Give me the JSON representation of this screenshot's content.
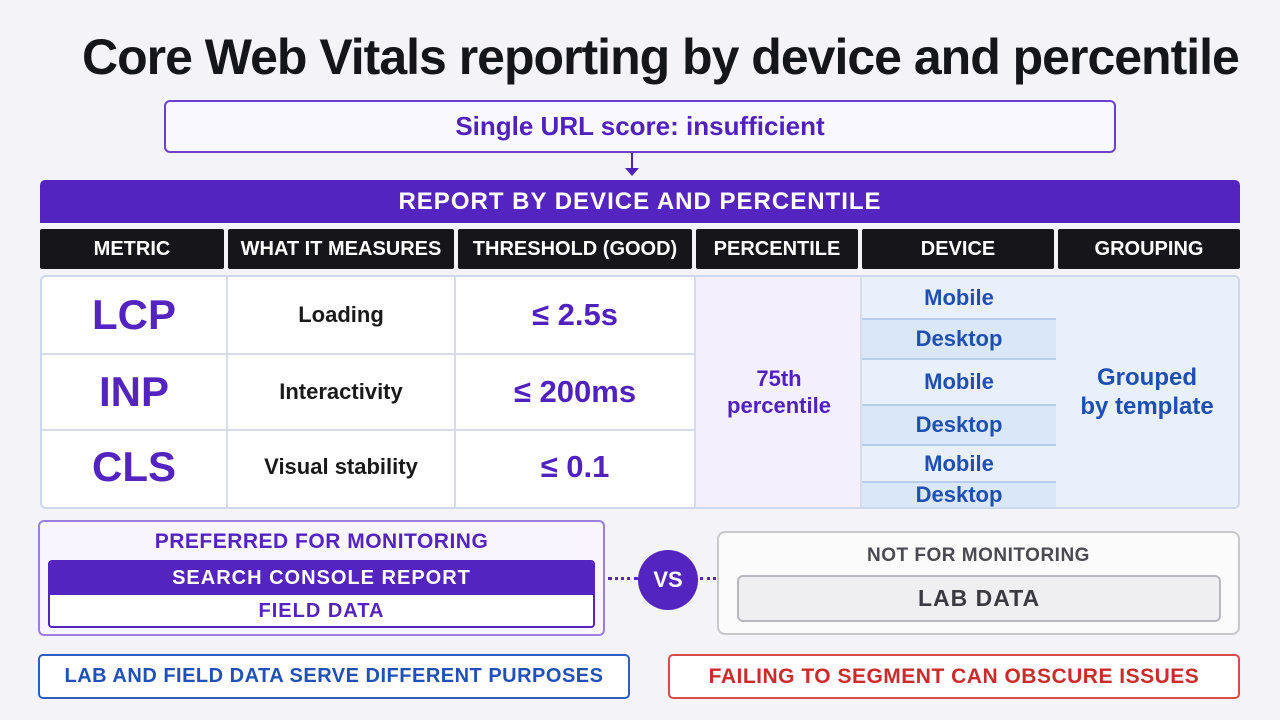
{
  "title": "Core Web Vitals reporting by device and percentile",
  "score_box": "Single URL score: insufficient",
  "banner": "REPORT BY DEVICE AND PERCENTILE",
  "headers": [
    "METRIC",
    "WHAT IT MEASURES",
    "THRESHOLD (GOOD)",
    "PERCENTILE",
    "DEVICE",
    "GROUPING"
  ],
  "rows": [
    {
      "metric": "LCP",
      "measures": "Loading",
      "threshold": "≤ 2.5s"
    },
    {
      "metric": "INP",
      "measures": "Interactivity",
      "threshold": "≤ 200ms"
    },
    {
      "metric": "CLS",
      "measures": "Visual stability",
      "threshold": "≤ 0.1"
    }
  ],
  "percentile": {
    "line1": "75th",
    "line2": "percentile"
  },
  "devices": [
    "Mobile",
    "Desktop",
    "Mobile",
    "Desktop",
    "Mobile",
    "Desktop"
  ],
  "grouping": {
    "line1": "Grouped",
    "line2": "by template"
  },
  "preferred": {
    "title": "PREFERRED FOR MONITORING",
    "source": "SEARCH CONSOLE REPORT",
    "data": "FIELD DATA"
  },
  "vs": "VS",
  "not_preferred": {
    "title": "NOT FOR MONITORING",
    "data": "LAB DATA"
  },
  "notes": {
    "left": "LAB AND FIELD DATA SERVE DIFFERENT PURPOSES",
    "right": "FAILING TO SEGMENT CAN OBSCURE ISSUES"
  },
  "colors": {
    "primary_purple": "#5324bf",
    "device_blue": "#1f4fb0",
    "warning_red": "#cc2b2b",
    "header_black": "#15151a"
  }
}
